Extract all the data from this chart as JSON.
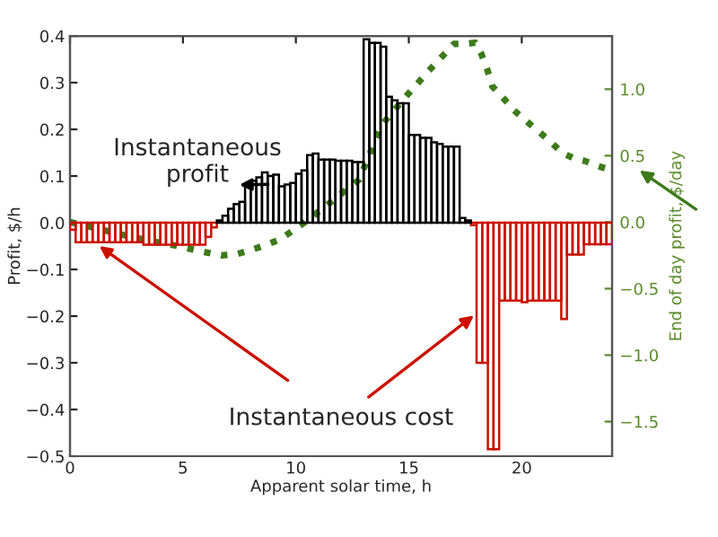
{
  "chart_data": {
    "type": "bar",
    "xlabel": "Apparent solar time, h",
    "ylabel": "Profit, $/h",
    "y2label": "End of day profit, $/day",
    "xlim": [
      0,
      24
    ],
    "xticks": [
      0,
      5,
      10,
      15,
      20
    ],
    "ylim": [
      -0.5,
      0.4
    ],
    "yticks": [
      {
        "value": -0.5,
        "label": "−0.5"
      },
      {
        "value": -0.4,
        "label": "−0.4"
      },
      {
        "value": -0.3,
        "label": "−0.3"
      },
      {
        "value": -0.2,
        "label": "−0.2"
      },
      {
        "value": -0.1,
        "label": "−0.1"
      },
      {
        "value": 0,
        "label": "0.0"
      },
      {
        "value": 0.1,
        "label": "0.1"
      },
      {
        "value": 0.2,
        "label": "0.2"
      },
      {
        "value": 0.3,
        "label": "0.3"
      },
      {
        "value": 0.4,
        "label": "0.4"
      }
    ],
    "y2lim": [
      -1.76,
      1.4
    ],
    "y2ticks": [
      {
        "value": -1.5,
        "label": "−1.5"
      },
      {
        "value": -1,
        "label": "−1.0"
      },
      {
        "value": -0.5,
        "label": "−0.5"
      },
      {
        "value": 0,
        "label": "0.0"
      },
      {
        "value": 0.5,
        "label": "0.5"
      },
      {
        "value": 1,
        "label": "1.0"
      }
    ],
    "grid": false,
    "series": [
      {
        "color": "#cc1100",
        "x": [
          0.125,
          0.375,
          0.625,
          0.875,
          1.125,
          1.375,
          1.625,
          1.875,
          2.125,
          2.375,
          2.625,
          2.875,
          3.125,
          3.375,
          3.625,
          3.875,
          4.125,
          4.375,
          4.625,
          4.875,
          5.125,
          5.375,
          5.625,
          5.875,
          6.125,
          6.375,
          17.875,
          18.125,
          18.375,
          18.625,
          18.875,
          19.125,
          19.375,
          19.625,
          19.875,
          20.125,
          20.375,
          20.625,
          20.875,
          21.125,
          21.375,
          21.625,
          21.875,
          22.125,
          22.375,
          22.625,
          22.875,
          23.125,
          23.375,
          23.625,
          23.875
        ],
        "values": [
          -0.015,
          -0.042,
          -0.042,
          -0.042,
          -0.042,
          -0.042,
          -0.042,
          -0.042,
          -0.042,
          -0.042,
          -0.042,
          -0.042,
          -0.042,
          -0.047,
          -0.047,
          -0.047,
          -0.047,
          -0.047,
          -0.047,
          -0.047,
          -0.047,
          -0.047,
          -0.047,
          -0.047,
          -0.03,
          -0.01,
          -0.005,
          -0.3,
          -0.3,
          -0.485,
          -0.485,
          -0.167,
          -0.167,
          -0.167,
          -0.167,
          -0.17,
          -0.167,
          -0.167,
          -0.167,
          -0.167,
          -0.167,
          -0.167,
          -0.206,
          -0.068,
          -0.068,
          -0.068,
          -0.046,
          -0.046,
          -0.046,
          -0.046,
          -0.046
        ]
      },
      {
        "color": "#000000",
        "x": [
          6.625,
          6.875,
          7.125,
          7.375,
          7.625,
          7.875,
          8.125,
          8.375,
          8.625,
          8.875,
          9.125,
          9.375,
          9.625,
          9.875,
          10.125,
          10.375,
          10.625,
          10.875,
          11.125,
          11.375,
          11.625,
          11.875,
          12.125,
          12.375,
          12.625,
          12.875,
          13.125,
          13.375,
          13.625,
          13.875,
          14.125,
          14.375,
          14.625,
          14.875,
          15.125,
          15.375,
          15.625,
          15.875,
          16.125,
          16.375,
          16.625,
          16.875,
          17.125,
          17.375,
          17.625
        ],
        "values": [
          0.005,
          0.015,
          0.03,
          0.04,
          0.045,
          0.08,
          0.09,
          0.097,
          0.108,
          0.1,
          0.103,
          0.078,
          0.082,
          0.085,
          0.105,
          0.112,
          0.145,
          0.148,
          0.135,
          0.135,
          0.135,
          0.133,
          0.133,
          0.133,
          0.13,
          0.13,
          0.393,
          0.385,
          0.385,
          0.377,
          0.27,
          0.262,
          0.256,
          0.256,
          0.188,
          0.188,
          0.182,
          0.182,
          0.172,
          0.169,
          0.163,
          0.163,
          0.163,
          0.01,
          0.005
        ]
      },
      {
        "type": "line",
        "axis": "y2",
        "color": "#3d7a1a",
        "line_style": "dotted",
        "x": [
          0,
          1,
          2.2,
          3.5,
          4.8,
          5.8,
          6.7,
          7.4,
          8,
          8.7,
          9.3,
          10.4,
          11.7,
          12.8,
          13.8,
          14.9,
          16,
          17,
          17.5,
          17.94,
          18.2,
          18.47,
          18.7,
          19.2,
          19.66,
          20.2,
          20.7,
          21.3,
          21.8,
          22.3,
          22.8,
          23.4,
          24
        ],
        "values": [
          0,
          -0.04,
          -0.09,
          -0.14,
          -0.18,
          -0.22,
          -0.25,
          -0.24,
          -0.21,
          -0.17,
          -0.13,
          0,
          0.17,
          0.32,
          0.73,
          0.95,
          1.16,
          1.34,
          1.34,
          1.35,
          1.27,
          1.15,
          1.02,
          0.93,
          0.84,
          0.76,
          0.69,
          0.6,
          0.52,
          0.48,
          0.46,
          0.42,
          0.39
        ]
      }
    ],
    "annotations": [
      {
        "text": "Instantaneous\nprofit",
        "x": 7.5,
        "y": 0.081
      },
      {
        "text": "Instantaneous cost",
        "x": 1.3,
        "y": -0.05
      }
    ]
  }
}
